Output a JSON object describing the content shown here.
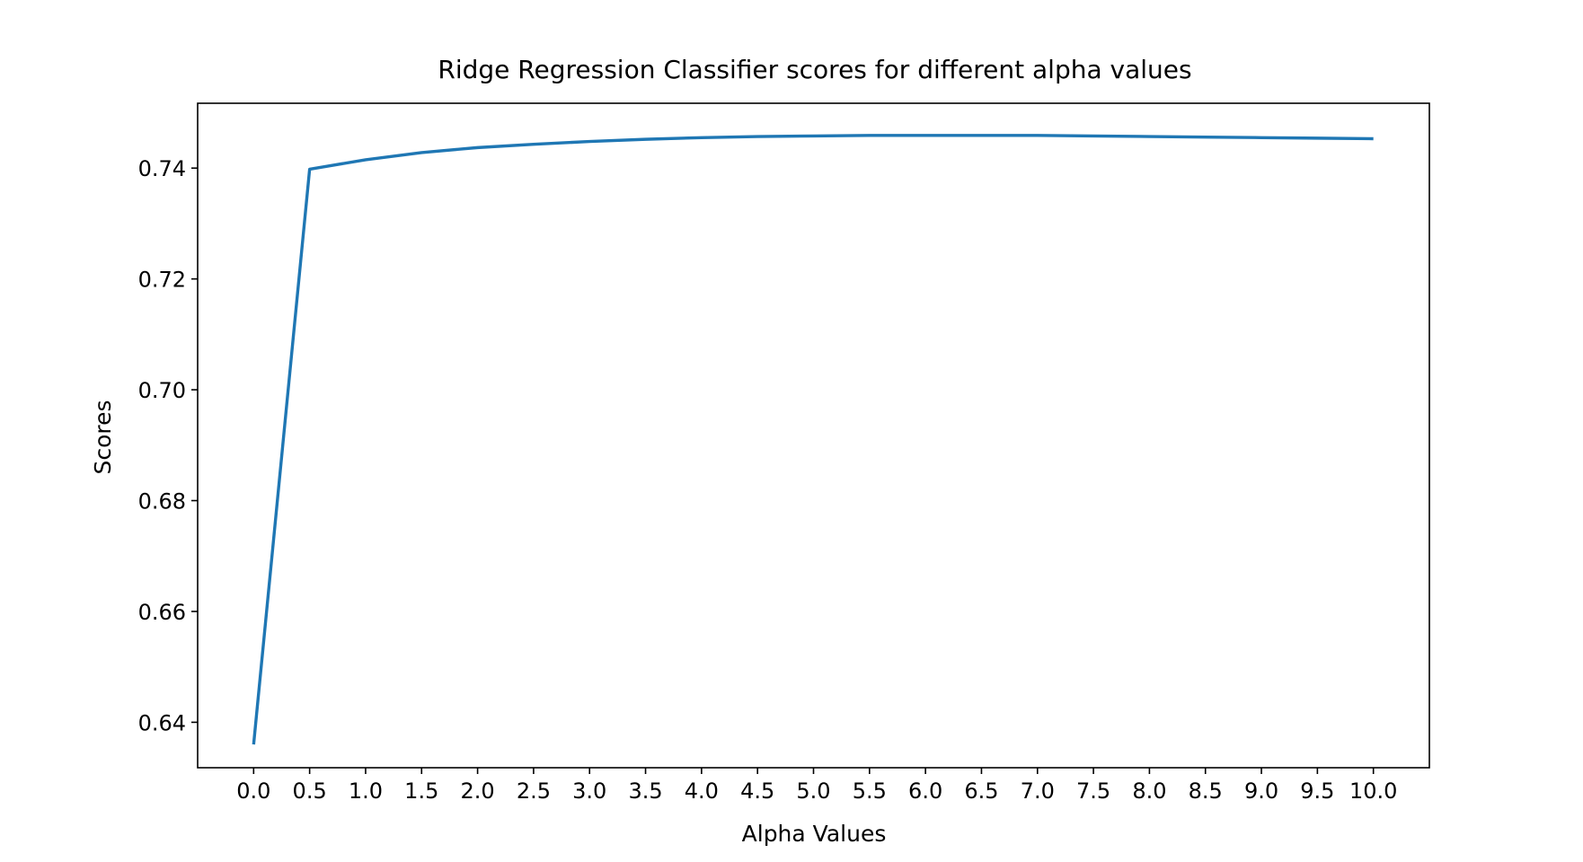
{
  "chart_data": {
    "type": "line",
    "title": "Ridge Regression Classifier scores for different alpha values",
    "xlabel": "Alpha Values",
    "ylabel": "Scores",
    "xlim": [
      -0.5,
      10.5
    ],
    "ylim": [
      0.6318,
      0.7517
    ],
    "x_ticks": [
      0.0,
      0.5,
      1.0,
      1.5,
      2.0,
      2.5,
      3.0,
      3.5,
      4.0,
      4.5,
      5.0,
      5.5,
      6.0,
      6.5,
      7.0,
      7.5,
      8.0,
      8.5,
      9.0,
      9.5,
      10.0
    ],
    "x_tick_labels": [
      "0.0",
      "0.5",
      "1.0",
      "1.5",
      "2.0",
      "2.5",
      "3.0",
      "3.5",
      "4.0",
      "4.5",
      "5.0",
      "5.5",
      "6.0",
      "6.5",
      "7.0",
      "7.5",
      "8.0",
      "8.5",
      "9.0",
      "9.5",
      "10.0"
    ],
    "y_ticks": [
      0.64,
      0.66,
      0.68,
      0.7,
      0.72,
      0.74
    ],
    "y_tick_labels": [
      "0.64",
      "0.66",
      "0.68",
      "0.70",
      "0.72",
      "0.74"
    ],
    "grid": false,
    "series": [
      {
        "color": "#1f77b4",
        "x": [
          0.0,
          0.5,
          1.0,
          1.5,
          2.0,
          2.5,
          3.0,
          3.5,
          4.0,
          4.5,
          5.0,
          5.5,
          6.0,
          6.5,
          7.0,
          7.5,
          8.0,
          8.5,
          9.0,
          9.5,
          10.0
        ],
        "values": [
          0.636,
          0.7398,
          0.7415,
          0.7428,
          0.7437,
          0.7443,
          0.7448,
          0.7452,
          0.7455,
          0.7457,
          0.7458,
          0.7459,
          0.7459,
          0.7459,
          0.7459,
          0.7458,
          0.7457,
          0.7456,
          0.7455,
          0.7454,
          0.7453
        ]
      }
    ]
  }
}
